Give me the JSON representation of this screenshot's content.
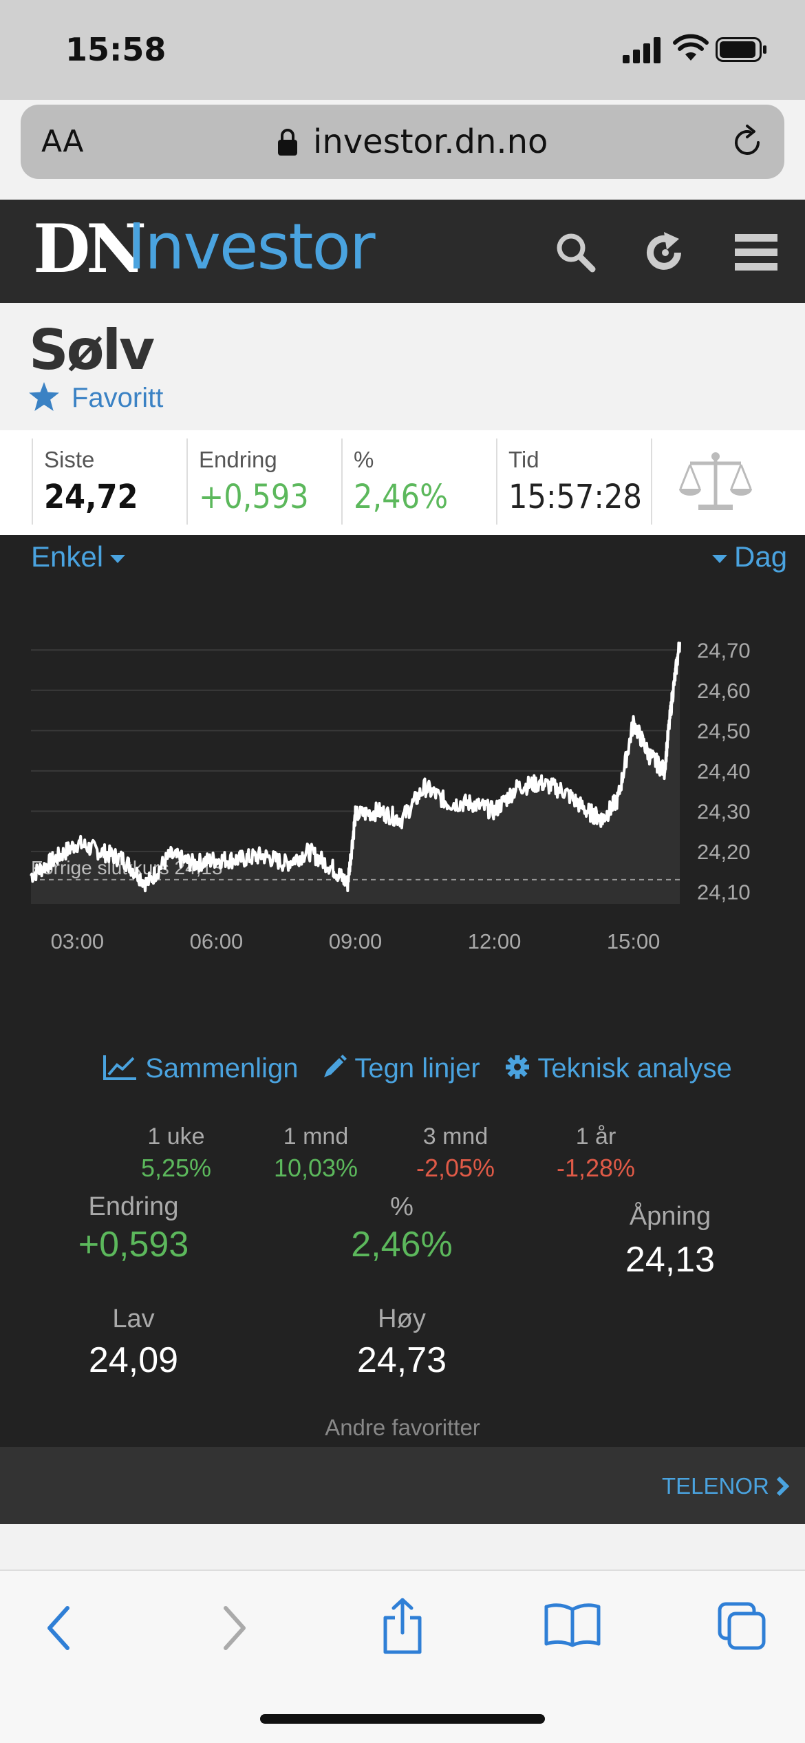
{
  "status_bar": {
    "time": "15:58"
  },
  "browser": {
    "text_size_label": "AA",
    "url": "investor.dn.no"
  },
  "site": {
    "logo_dn": "DN",
    "logo_investor": "Investor"
  },
  "instrument": {
    "title": "Sølv",
    "favorite_label": "Favoritt"
  },
  "quote": {
    "siste_label": "Siste",
    "siste_value": "24,72",
    "endring_label": "Endring",
    "endring_value": "+0,593",
    "pct_label": "%",
    "pct_value": "2,46%",
    "tid_label": "Tid",
    "tid_value": "15:57:28"
  },
  "chart_controls": {
    "mode_label": "Enkel",
    "period_label": "Dag"
  },
  "chart_data": {
    "type": "line",
    "title": "",
    "xlabel": "",
    "ylabel": "",
    "x_ticks": [
      "03:00",
      "06:00",
      "09:00",
      "12:00",
      "15:00"
    ],
    "y_ticks": [
      "24,70",
      "24,60",
      "24,50",
      "24,40",
      "24,30",
      "24,20",
      "24,10"
    ],
    "ylim": [
      24.07,
      24.75
    ],
    "reference_line_label": "Forrige sluttkurs 24,13",
    "reference_value": 24.13,
    "series": [
      {
        "x": [
          "02:00",
          "02:30",
          "03:00",
          "03:30",
          "04:00",
          "04:30",
          "05:00",
          "05:30",
          "06:00",
          "06:30",
          "07:00",
          "07:30",
          "08:00",
          "08:30",
          "08:50",
          "09:00",
          "09:30",
          "10:00",
          "10:30",
          "11:00",
          "11:30",
          "12:00",
          "12:30",
          "13:00",
          "13:30",
          "14:00",
          "14:20",
          "14:40",
          "15:00",
          "15:20",
          "15:40",
          "15:50",
          "16:00"
        ],
        "y": [
          24.14,
          24.18,
          24.22,
          24.2,
          24.18,
          24.12,
          24.19,
          24.17,
          24.18,
          24.18,
          24.19,
          24.17,
          24.2,
          24.16,
          24.12,
          24.29,
          24.3,
          24.28,
          24.36,
          24.32,
          24.32,
          24.3,
          24.36,
          24.37,
          24.35,
          24.3,
          24.28,
          24.33,
          24.52,
          24.44,
          24.4,
          24.58,
          24.72
        ]
      }
    ],
    "grid": true,
    "legend": "none"
  },
  "tools": {
    "compare": "Sammenlign",
    "draw": "Tegn linjer",
    "technical": "Teknisk analyse"
  },
  "periods": [
    {
      "label": "1 uke",
      "value": "5,25%"
    },
    {
      "label": "1 mnd",
      "value": "10,03%"
    },
    {
      "label": "3 mnd",
      "value": "-2,05%"
    },
    {
      "label": "1 år",
      "value": "-1,28%"
    }
  ],
  "stats": {
    "endring_label": "Endring",
    "endring_value": "+0,593",
    "pct_label": "%",
    "pct_value": "2,46%",
    "apning_label": "Åpning",
    "apning_value": "24,13",
    "lav_label": "Lav",
    "lav_value": "24,09",
    "hoy_label": "Høy",
    "hoy_value": "24,73"
  },
  "other_favorites": {
    "label": "Andre favoritter",
    "item": "TELENOR"
  },
  "colors": {
    "accent": "#4aa3df",
    "positive": "#5cb85c",
    "negative": "#e05a47",
    "panel": "#222222"
  }
}
